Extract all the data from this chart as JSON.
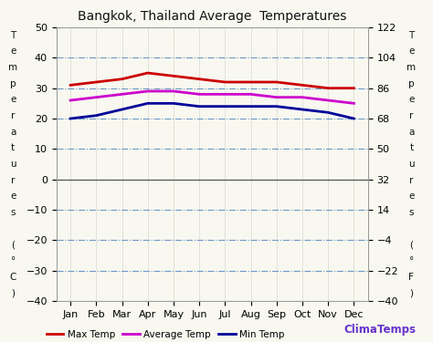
{
  "title": "Bangkok, Thailand Average  Temperatures",
  "months": [
    "Jan",
    "Feb",
    "Mar",
    "Apr",
    "May",
    "Jun",
    "Jul",
    "Aug",
    "Sep",
    "Oct",
    "Nov",
    "Dec"
  ],
  "max_temp": [
    31,
    32,
    33,
    35,
    34,
    33,
    32,
    32,
    32,
    31,
    30,
    30
  ],
  "avg_temp": [
    26,
    27,
    28,
    29,
    29,
    28,
    28,
    28,
    27,
    27,
    26,
    25
  ],
  "min_temp": [
    20,
    21,
    23,
    25,
    25,
    24,
    24,
    24,
    24,
    23,
    22,
    20
  ],
  "max_color": "#cc0000",
  "avg_color": "#cc00cc",
  "min_color": "#000099",
  "ylim_left": [
    -40,
    50
  ],
  "ylim_right": [
    -40,
    122
  ],
  "yticks_left": [
    -40,
    -30,
    -20,
    -10,
    0,
    10,
    20,
    30,
    40,
    50
  ],
  "yticks_right": [
    -40.0,
    -22.0,
    -4.0,
    14.0,
    32.0,
    50.0,
    68.0,
    86.0,
    104.0,
    122.0
  ],
  "grid_color": "#5588bb",
  "grid_style": "-.",
  "bg_color": "#f8f8f0",
  "plot_bg_color": "#f8f8f0",
  "ylabel_left_chars": [
    "T",
    "e",
    "m",
    "p",
    "e",
    "r",
    "a",
    "t",
    "u",
    "r",
    "e",
    "s",
    "",
    "(",
    "°",
    "C",
    ")"
  ],
  "ylabel_right_chars": [
    "T",
    "e",
    "m",
    "p",
    "e",
    "r",
    "a",
    "t",
    "u",
    "r",
    "e",
    "s",
    "",
    "(",
    "°",
    "F",
    ")"
  ],
  "brand": "ClimaTemps",
  "brand_color": "#6633cc",
  "legend_labels": [
    "Max Temp",
    "Average Temp",
    "Min Temp"
  ],
  "line_width": 2.0,
  "tick_fontsize": 8,
  "title_fontsize": 10
}
